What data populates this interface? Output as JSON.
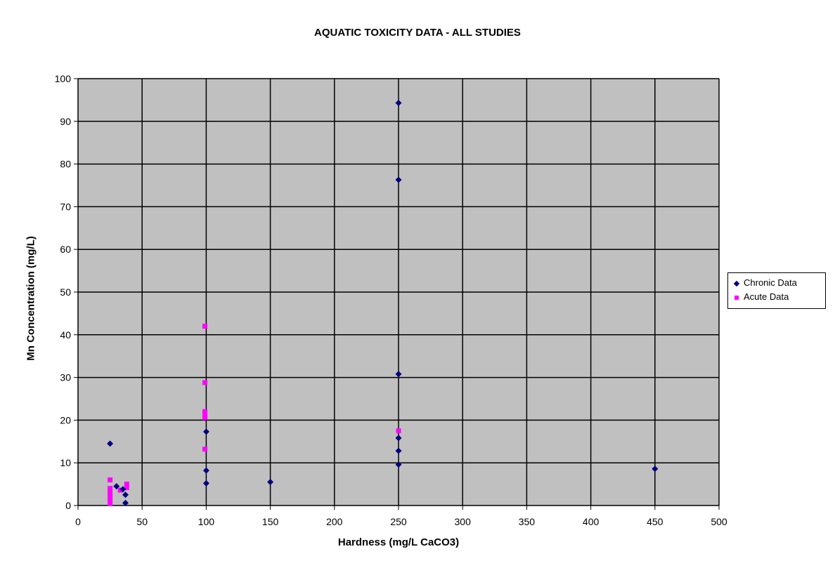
{
  "chart_data": {
    "type": "scatter",
    "title": "AQUATIC TOXICITY DATA - ALL STUDIES",
    "xlabel": "Hardness (mg/L CaCO3)",
    "ylabel": "Mn Concentration (mg/L)",
    "xlim": [
      0,
      500
    ],
    "ylim": [
      0,
      100
    ],
    "x_ticks": [
      0,
      50,
      100,
      150,
      200,
      250,
      300,
      350,
      400,
      450,
      500
    ],
    "y_ticks": [
      0,
      10,
      20,
      30,
      40,
      50,
      60,
      70,
      80,
      90,
      100
    ],
    "grid": true,
    "legend_position": "right",
    "plot_background": "#c0c0c0",
    "series": [
      {
        "name": "Chronic Data",
        "marker": "diamond",
        "color": "#000080",
        "points": [
          {
            "x": 25,
            "y": 14.5
          },
          {
            "x": 30,
            "y": 4.5
          },
          {
            "x": 35,
            "y": 3.8
          },
          {
            "x": 37,
            "y": 2.5
          },
          {
            "x": 37,
            "y": 0.6
          },
          {
            "x": 100,
            "y": 17.3
          },
          {
            "x": 100,
            "y": 8.2
          },
          {
            "x": 100,
            "y": 5.2
          },
          {
            "x": 150,
            "y": 5.5
          },
          {
            "x": 250,
            "y": 94.3
          },
          {
            "x": 250,
            "y": 76.3
          },
          {
            "x": 250,
            "y": 30.8
          },
          {
            "x": 250,
            "y": 15.8
          },
          {
            "x": 250,
            "y": 12.8
          },
          {
            "x": 250,
            "y": 9.6
          },
          {
            "x": 450,
            "y": 8.6
          }
        ]
      },
      {
        "name": "Acute Data",
        "marker": "square",
        "color": "#ff00ff",
        "points": [
          {
            "x": 25,
            "y": 6.0
          },
          {
            "x": 25,
            "y": 4.0
          },
          {
            "x": 25,
            "y": 3.2
          },
          {
            "x": 25,
            "y": 2.5
          },
          {
            "x": 25,
            "y": 1.8
          },
          {
            "x": 25,
            "y": 1.0
          },
          {
            "x": 25,
            "y": 0.5
          },
          {
            "x": 33,
            "y": 3.6
          },
          {
            "x": 38,
            "y": 5.0
          },
          {
            "x": 38,
            "y": 4.2
          },
          {
            "x": 99,
            "y": 42.0
          },
          {
            "x": 99,
            "y": 28.8
          },
          {
            "x": 99,
            "y": 22.0
          },
          {
            "x": 99,
            "y": 21.3
          },
          {
            "x": 99,
            "y": 20.6
          },
          {
            "x": 99,
            "y": 13.2
          },
          {
            "x": 250,
            "y": 17.5
          }
        ]
      }
    ]
  }
}
